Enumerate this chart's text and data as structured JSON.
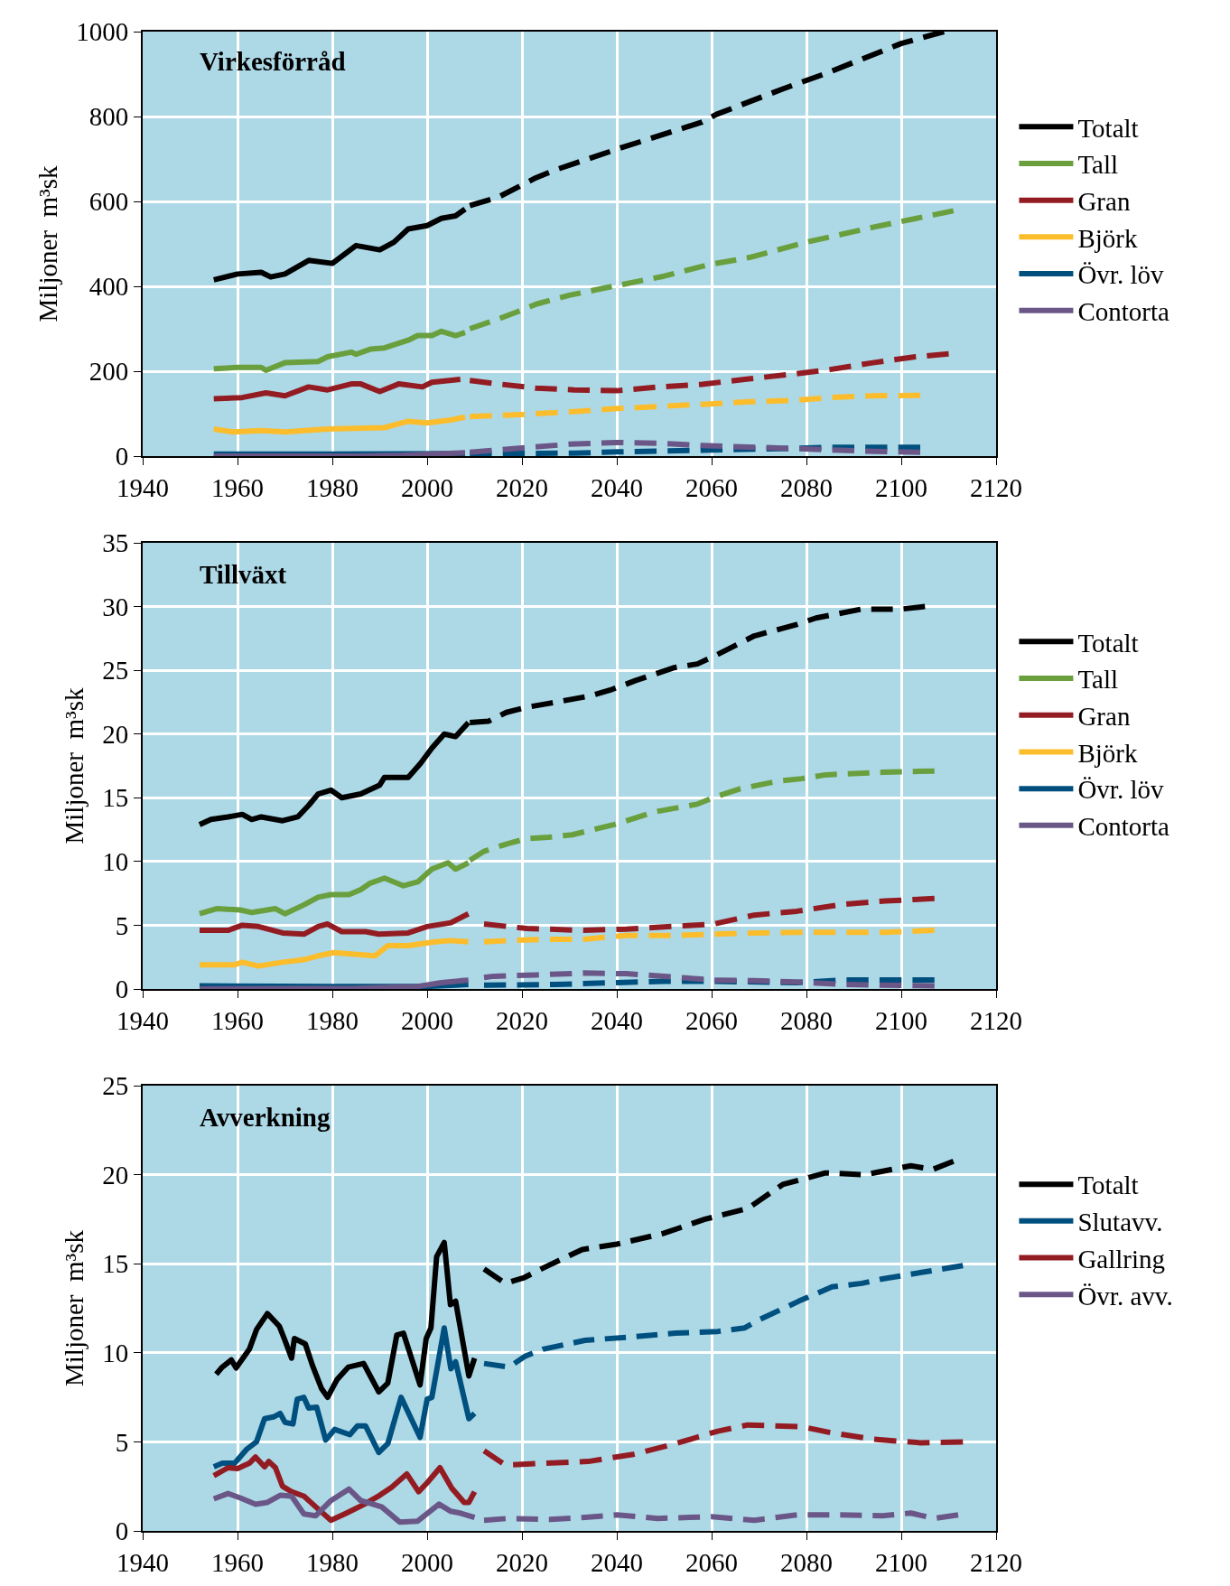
{
  "chart_data": [
    {
      "type": "line",
      "title": "Virkesförråd",
      "ylabel": "Miljoner  m³sk",
      "xlim": [
        1940,
        2120
      ],
      "xticks": [
        1940,
        1960,
        1980,
        2000,
        2020,
        2040,
        2060,
        2080,
        2100,
        2120
      ],
      "ylim": [
        0,
        1000
      ],
      "yticks": [
        0,
        200,
        400,
        600,
        800,
        1000
      ],
      "grid": true,
      "legend": "right",
      "series": [
        {
          "name": "Totalt",
          "color": "#000000",
          "line_style": "solid",
          "x": [
            1955,
            1960,
            1965,
            1967,
            1970,
            1975,
            1980,
            1985,
            1990,
            1993,
            1996,
            2000,
            2003,
            2006,
            2008
          ],
          "values": [
            415,
            429,
            433,
            422,
            429,
            461,
            454,
            496,
            486,
            504,
            535,
            543,
            560,
            566,
            582
          ]
        },
        {
          "name": "Tall",
          "color": "#6a9f3e",
          "line_style": "solid",
          "x": [
            1955,
            1960,
            1965,
            1966,
            1970,
            1977,
            1979,
            1984,
            1985,
            1988,
            1991,
            1996,
            1998,
            2001,
            2003,
            2006,
            2008
          ],
          "values": [
            206,
            209,
            209,
            202,
            220,
            223,
            234,
            245,
            240,
            252,
            255,
            273,
            284,
            284,
            294,
            284,
            291
          ]
        },
        {
          "name": "Gran",
          "color": "#931c23",
          "line_style": "solid",
          "x": [
            1955,
            1961,
            1966,
            1970,
            1975,
            1979,
            1984,
            1986,
            1990,
            1994,
            1999,
            2001,
            2007
          ],
          "values": [
            135,
            138,
            149,
            142,
            163,
            156,
            170,
            170,
            152,
            170,
            163,
            174,
            181
          ]
        },
        {
          "name": "Björk",
          "color": "#fcbd2d",
          "line_style": "solid",
          "x": [
            1955,
            1959,
            1965,
            1970,
            1979,
            1991,
            1996,
            2000,
            2005,
            2008
          ],
          "values": [
            64,
            57,
            60,
            57,
            64,
            67,
            82,
            78,
            85,
            92
          ]
        },
        {
          "name": "Övr. löv",
          "color": "#00507f",
          "line_style": "solid",
          "x": [
            1955,
            1980,
            2008
          ],
          "values": [
            5,
            5,
            6
          ]
        },
        {
          "name": "Contorta",
          "color": "#6a5687",
          "line_style": "solid",
          "x": [
            1955,
            1985,
            1995,
            2008
          ],
          "values": [
            0,
            0,
            2,
            8
          ]
        },
        {
          "color": "#000000",
          "line_style": "dashed",
          "x": [
            2009,
            2015,
            2023,
            2027,
            2040,
            2058,
            2061,
            2075,
            2084,
            2100,
            2109
          ],
          "values": [
            590,
            610,
            656,
            674,
            723,
            787,
            805,
            865,
            901,
            972,
            1000
          ]
        },
        {
          "color": "#6a9f3e",
          "line_style": "dashed",
          "x": [
            2009,
            2015,
            2019,
            2023,
            2030,
            2041,
            2050,
            2059,
            2068,
            2080,
            2094,
            2111
          ],
          "values": [
            300,
            323,
            340,
            358,
            379,
            404,
            424,
            450,
            468,
            504,
            539,
            578
          ]
        },
        {
          "color": "#931c23",
          "line_style": "dashed",
          "x": [
            2009,
            2015,
            2023,
            2031,
            2040,
            2049,
            2058,
            2067,
            2077,
            2085,
            2094,
            2103,
            2110
          ],
          "values": [
            178,
            170,
            160,
            156,
            154,
            163,
            169,
            181,
            193,
            204,
            220,
            234,
            241
          ]
        },
        {
          "color": "#fcbd2d",
          "line_style": "dashed",
          "x": [
            2009,
            2020,
            2031,
            2040,
            2049,
            2058,
            2068,
            2077,
            2085,
            2094,
            2104
          ],
          "values": [
            93,
            98,
            105,
            112,
            117,
            122,
            128,
            131,
            138,
            142,
            143
          ]
        },
        {
          "color": "#00507f",
          "line_style": "dashed",
          "x": [
            2009,
            2031,
            2040,
            2058,
            2077,
            2085,
            2104
          ],
          "values": [
            6,
            7,
            10,
            14,
            18,
            21,
            21
          ]
        },
        {
          "color": "#6a5687",
          "line_style": "dashed",
          "x": [
            2009,
            2022,
            2030,
            2040,
            2049,
            2058,
            2077,
            2094,
            2104
          ],
          "values": [
            9,
            21,
            28,
            32,
            30,
            25,
            18,
            11,
            9
          ]
        }
      ]
    },
    {
      "type": "line",
      "title": "Tillväxt",
      "ylabel": "Miljoner  m³sk",
      "xlim": [
        1940,
        2120
      ],
      "xticks": [
        1940,
        1960,
        1980,
        2000,
        2020,
        2040,
        2060,
        2080,
        2100,
        2120
      ],
      "ylim": [
        0,
        35
      ],
      "yticks": [
        0,
        5,
        10,
        15,
        20,
        25,
        30,
        35
      ],
      "grid": true,
      "legend": "right",
      "series": [
        {
          "name": "Totalt",
          "color": "#000000",
          "line_style": "solid",
          "x": [
            1952,
            1954.4,
            1958,
            1961,
            1963,
            1965,
            1969.5,
            1972.7,
            1975,
            1977,
            1979.7,
            1982,
            1986,
            1990,
            1991,
            1996,
            1998.6,
            2001,
            2003.6,
            2006,
            2008.7
          ],
          "values": [
            12.9,
            13.3,
            13.5,
            13.7,
            13.3,
            13.5,
            13.2,
            13.5,
            14.4,
            15.3,
            15.6,
            15.0,
            15.3,
            16.0,
            16.6,
            16.6,
            17.7,
            18.9,
            20.0,
            19.8,
            20.9
          ]
        },
        {
          "name": "Tall",
          "color": "#6a9f3e",
          "line_style": "solid",
          "x": [
            1952,
            1955.6,
            1960.6,
            1963,
            1968,
            1970,
            1974,
            1977,
            1979.7,
            1983.5,
            1986,
            1988,
            1991,
            1995,
            1998,
            2001,
            2004.4,
            2006,
            2008.7
          ],
          "values": [
            5.9,
            6.3,
            6.2,
            6.0,
            6.3,
            5.9,
            6.6,
            7.2,
            7.4,
            7.4,
            7.8,
            8.3,
            8.7,
            8.1,
            8.4,
            9.4,
            9.9,
            9.4,
            9.9
          ]
        },
        {
          "name": "Gran",
          "color": "#931c23",
          "line_style": "solid",
          "x": [
            1952,
            1958,
            1961,
            1964.4,
            1969.5,
            1974,
            1977,
            1979,
            1982,
            1987,
            1989.8,
            1996,
            2000,
            2005,
            2008.7
          ],
          "values": [
            4.6,
            4.6,
            5.0,
            4.9,
            4.4,
            4.3,
            4.9,
            5.1,
            4.5,
            4.5,
            4.3,
            4.4,
            4.9,
            5.2,
            5.9
          ]
        },
        {
          "name": "Björk",
          "color": "#fcbd2d",
          "line_style": "solid",
          "x": [
            1952,
            1959.4,
            1961,
            1964.4,
            1969.5,
            1974,
            1977,
            1980.3,
            1989,
            1991.7,
            1996,
            2001.7,
            2005,
            2008.7
          ],
          "values": [
            1.9,
            1.9,
            2.1,
            1.8,
            2.1,
            2.3,
            2.6,
            2.85,
            2.6,
            3.4,
            3.4,
            3.7,
            3.8,
            3.7
          ]
        },
        {
          "name": "Övr. löv",
          "color": "#00507f",
          "line_style": "solid",
          "x": [
            1952,
            1980,
            2000,
            2008.7
          ],
          "values": [
            0.25,
            0.2,
            0.2,
            0.35
          ]
        },
        {
          "name": "Contorta",
          "color": "#6a5687",
          "line_style": "solid",
          "x": [
            1952,
            1985,
            1998,
            2003,
            2008.7
          ],
          "values": [
            0,
            0.05,
            0.2,
            0.5,
            0.7
          ]
        },
        {
          "color": "#000000",
          "line_style": "dashed",
          "x": [
            2009,
            2012.9,
            2016.7,
            2021,
            2025.6,
            2034.5,
            2039,
            2044,
            2052,
            2057,
            2061,
            2069,
            2078,
            2082,
            2091.6,
            2100,
            2105
          ],
          "values": [
            20.9,
            21.0,
            21.7,
            22.1,
            22.4,
            23.0,
            23.5,
            24.2,
            25.2,
            25.5,
            26.2,
            27.7,
            28.6,
            29.1,
            29.8,
            29.8,
            30.0
          ]
        },
        {
          "color": "#6a9f3e",
          "line_style": "dashed",
          "x": [
            2009,
            2012,
            2017,
            2021,
            2025.6,
            2030.6,
            2035,
            2039.5,
            2048,
            2057,
            2061,
            2066,
            2074,
            2079,
            2084,
            2096,
            2107
          ],
          "values": [
            10.1,
            10.8,
            11.4,
            11.8,
            11.9,
            12.1,
            12.5,
            12.9,
            13.9,
            14.5,
            15.1,
            15.7,
            16.3,
            16.5,
            16.8,
            17.0,
            17.1
          ]
        },
        {
          "color": "#931c23",
          "line_style": "dashed",
          "x": [
            2012,
            2017,
            2021,
            2033,
            2042,
            2051.6,
            2060.5,
            2069,
            2078,
            2087.8,
            2096.6,
            2107
          ],
          "values": [
            5.1,
            4.9,
            4.75,
            4.6,
            4.7,
            4.9,
            5.1,
            5.8,
            6.1,
            6.65,
            6.9,
            7.1
          ]
        },
        {
          "color": "#fcbd2d",
          "line_style": "dashed",
          "x": [
            2012,
            2017,
            2025.6,
            2033,
            2042,
            2051.6,
            2060.5,
            2069,
            2079,
            2096.6,
            2107
          ],
          "values": [
            3.7,
            3.8,
            3.9,
            3.9,
            4.2,
            4.2,
            4.3,
            4.4,
            4.45,
            4.45,
            4.6
          ]
        },
        {
          "color": "#00507f",
          "line_style": "dashed",
          "x": [
            2012,
            2027,
            2040,
            2050,
            2060.5,
            2078,
            2087.8,
            2107
          ],
          "values": [
            0.3,
            0.35,
            0.5,
            0.6,
            0.6,
            0.5,
            0.7,
            0.7
          ]
        },
        {
          "color": "#6a5687",
          "line_style": "dashed",
          "x": [
            2012,
            2014,
            2023,
            2033,
            2042,
            2051.6,
            2060.5,
            2069,
            2078,
            2087.8,
            2107
          ],
          "values": [
            0.9,
            1.0,
            1.1,
            1.25,
            1.2,
            0.95,
            0.7,
            0.65,
            0.55,
            0.35,
            0.24
          ]
        }
      ]
    },
    {
      "type": "line",
      "title": "Avverkning",
      "ylabel": "Miljoner  m³sk",
      "xlim": [
        1940,
        2120
      ],
      "xticks": [
        1940,
        1960,
        1980,
        2000,
        2020,
        2040,
        2060,
        2080,
        2100,
        2120
      ],
      "ylim": [
        0,
        25
      ],
      "yticks": [
        0,
        5,
        10,
        15,
        20,
        25
      ],
      "grid": true,
      "legend": "right",
      "series": [
        {
          "name": "Totalt",
          "color": "#000000",
          "line_style": "solid",
          "x": [
            1955.5,
            1956.8,
            1958.7,
            1959.7,
            1962.5,
            1964,
            1966.3,
            1968.8,
            1970,
            1971.4,
            1972,
            1974.3,
            1975.8,
            1977.7,
            1979,
            1981,
            1983.4,
            1986.6,
            1989.8,
            1991.7,
            1993.6,
            1995,
            1998.5,
            1999.8,
            2000.8,
            2002,
            2003.6,
            2004.9,
            2006,
            2008.8,
            2010
          ],
          "values": [
            8.8,
            9.2,
            9.6,
            9.15,
            10.2,
            11.3,
            12.2,
            11.5,
            10.7,
            9.7,
            10.8,
            10.5,
            9.3,
            8.0,
            7.5,
            8.5,
            9.2,
            9.4,
            7.8,
            8.3,
            11.0,
            11.1,
            8.2,
            10.8,
            11.4,
            15.4,
            16.2,
            12.7,
            12.9,
            8.7,
            9.7
          ]
        },
        {
          "name": "Slutavv.",
          "color": "#00507f",
          "line_style": "solid",
          "x": [
            1955,
            1956.8,
            1959.4,
            1962,
            1964,
            1965.7,
            1967.6,
            1969,
            1970,
            1971.7,
            1972.6,
            1974,
            1975,
            1976.7,
            1978.6,
            1980.5,
            1983.7,
            1985.3,
            1987,
            1989.8,
            1991.7,
            1994.5,
            1998.5,
            2000,
            2001,
            2003.6,
            2005,
            2006,
            2008.8,
            2010
          ],
          "values": [
            3.6,
            3.8,
            3.8,
            4.6,
            5.0,
            6.3,
            6.4,
            6.6,
            6.1,
            6.0,
            7.4,
            7.5,
            6.9,
            6.95,
            5.1,
            5.7,
            5.4,
            5.9,
            5.9,
            4.4,
            4.9,
            7.5,
            5.25,
            7.4,
            7.5,
            11.4,
            9.1,
            9.5,
            6.3,
            6.6
          ]
        },
        {
          "name": "Gallring",
          "color": "#931c23",
          "line_style": "solid",
          "x": [
            1955,
            1958,
            1960,
            1962.5,
            1963.8,
            1965.7,
            1966.6,
            1968,
            1969.5,
            1971.4,
            1974,
            1976.5,
            1979.7,
            1983,
            1986.8,
            1990,
            1992.5,
            1995.7,
            1998.2,
            2000,
            2002.7,
            2005.2,
            2007.8,
            2008.8,
            2010
          ],
          "values": [
            3.1,
            3.55,
            3.5,
            3.8,
            4.15,
            3.6,
            3.9,
            3.55,
            2.5,
            2.2,
            1.95,
            1.35,
            0.6,
            1.0,
            1.5,
            2.0,
            2.45,
            3.2,
            2.2,
            2.7,
            3.55,
            2.4,
            1.6,
            1.6,
            2.2
          ]
        },
        {
          "name": "Övr. avv.",
          "color": "#6a5687",
          "line_style": "solid",
          "x": [
            1955,
            1958,
            1960.6,
            1963.8,
            1966.3,
            1969,
            1971.4,
            1974,
            1976.5,
            1979.7,
            1983.5,
            1986,
            1990.4,
            1994.2,
            1998,
            2002.5,
            2005,
            2007,
            2010
          ],
          "values": [
            1.8,
            2.1,
            1.85,
            1.5,
            1.6,
            2.0,
            1.95,
            0.95,
            0.85,
            1.7,
            2.35,
            1.7,
            1.35,
            0.5,
            0.55,
            1.5,
            1.1,
            1.0,
            0.75
          ]
        },
        {
          "color": "#000000",
          "line_style": "dashed",
          "x": [
            2012,
            2016.5,
            2020.3,
            2024.4,
            2032.7,
            2040,
            2049.8,
            2058.6,
            2067.6,
            2075,
            2080,
            2084,
            2092.3,
            2102,
            2106.7,
            2111
          ],
          "values": [
            14.7,
            13.9,
            14.2,
            14.75,
            15.8,
            16.1,
            16.7,
            17.5,
            18.1,
            19.45,
            19.8,
            20.1,
            20.0,
            20.5,
            20.3,
            20.75
          ]
        },
        {
          "color": "#00507f",
          "line_style": "dashed",
          "x": [
            2012,
            2017.3,
            2020.6,
            2024.4,
            2033.3,
            2043.5,
            2052.4,
            2061.3,
            2067,
            2070,
            2078.4,
            2085.4,
            2091.7,
            2096,
            2104,
            2113
          ],
          "values": [
            9.4,
            9.2,
            9.8,
            10.2,
            10.7,
            10.9,
            11.1,
            11.2,
            11.4,
            11.85,
            12.9,
            13.7,
            13.9,
            14.15,
            14.5,
            14.9
          ]
        },
        {
          "color": "#931c23",
          "line_style": "dashed",
          "x": [
            2012,
            2016.5,
            2024.4,
            2034,
            2043.5,
            2052.4,
            2061.3,
            2067.6,
            2079,
            2085.4,
            2094,
            2104,
            2113
          ],
          "values": [
            4.5,
            3.7,
            3.8,
            3.9,
            4.3,
            4.9,
            5.6,
            5.95,
            5.85,
            5.5,
            5.15,
            4.95,
            5.0
          ]
        },
        {
          "color": "#6a5687",
          "line_style": "dashed",
          "x": [
            2012,
            2017,
            2026,
            2032.7,
            2040,
            2048.6,
            2060,
            2069,
            2078,
            2086,
            2096,
            2102,
            2107,
            2112
          ],
          "values": [
            0.6,
            0.7,
            0.65,
            0.75,
            0.9,
            0.7,
            0.8,
            0.6,
            0.9,
            0.9,
            0.85,
            1.0,
            0.7,
            0.9
          ]
        }
      ]
    }
  ]
}
